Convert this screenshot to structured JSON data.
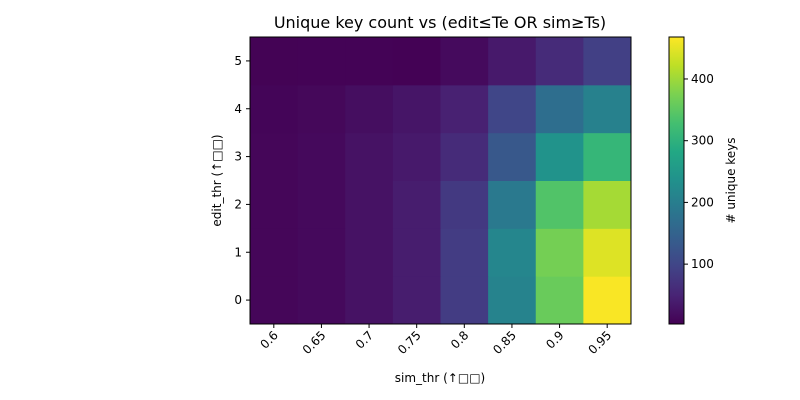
{
  "chart_data": {
    "type": "heatmap",
    "title": "Unique key count  vs  (edit≤Te OR sim≥Ts)",
    "xlabel": "sim_thr (↑□□)",
    "ylabel": "edit_thr (↑□□)",
    "x": [
      "0.6",
      "0.65",
      "0.7",
      "0.75",
      "0.8",
      "0.85",
      "0.9",
      "0.95"
    ],
    "y": [
      "0",
      "1",
      "2",
      "3",
      "4",
      "5"
    ],
    "values": [
      [
        10,
        14,
        25,
        40,
        85,
        210,
        360,
        465
      ],
      [
        10,
        14,
        25,
        40,
        85,
        215,
        370,
        445
      ],
      [
        10,
        14,
        25,
        40,
        80,
        190,
        340,
        405
      ],
      [
        10,
        14,
        25,
        35,
        60,
        130,
        240,
        310
      ],
      [
        8,
        12,
        20,
        30,
        45,
        100,
        170,
        205
      ],
      [
        5,
        6,
        6,
        4,
        15,
        35,
        60,
        90
      ]
    ],
    "colorbar": {
      "label": "# unique keys",
      "min": 3,
      "max": 468,
      "ticks": [
        100,
        200,
        300,
        400
      ],
      "colormap": "viridis"
    },
    "grid": false
  }
}
